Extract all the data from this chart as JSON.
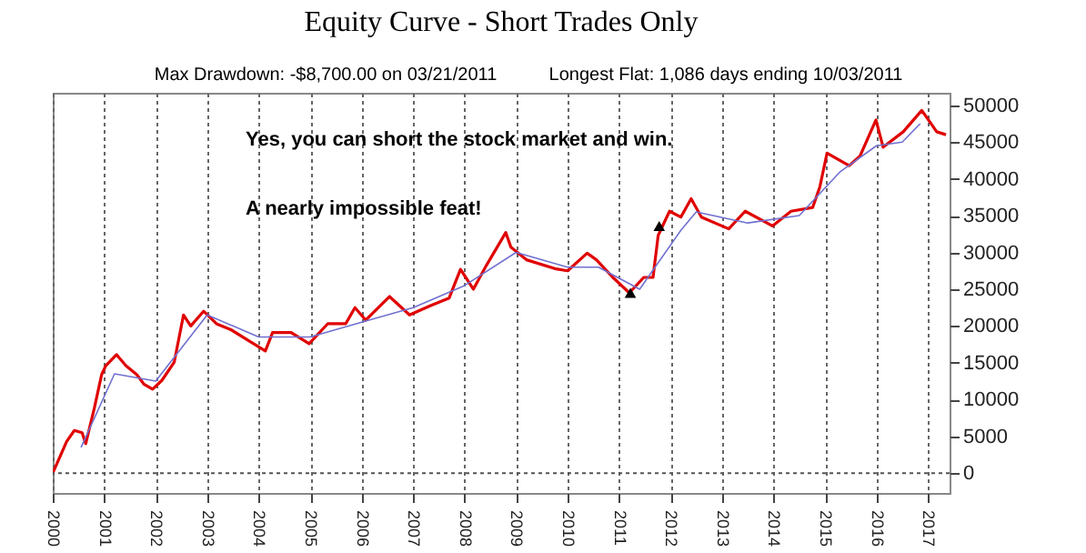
{
  "chart_data": {
    "type": "line",
    "title": "Equity Curve - Short Trades Only",
    "annotations": [
      "Max Drawdown: -$8,700.00 on 03/21/2011",
      "Longest Flat: 1,086 days ending 10/03/2011",
      "Yes, you can short the stock market and win.",
      "A nearly impossible feat!"
    ],
    "series": [
      {
        "color": "#e00000",
        "x": [
          2000.0,
          2000.27,
          2000.42,
          2000.57,
          2000.64,
          2000.81,
          2000.95,
          2001.03,
          2001.24,
          2001.42,
          2001.63,
          2001.77,
          2001.94,
          2002.12,
          2002.36,
          2002.54,
          2002.68,
          2002.93,
          2003.18,
          2003.46,
          2003.85,
          2004.13,
          2004.27,
          2004.63,
          2004.98,
          2005.34,
          2005.69,
          2005.87,
          2006.08,
          2006.54,
          2006.93,
          2007.35,
          2007.7,
          2007.92,
          2008.17,
          2008.42,
          2008.8,
          2008.9,
          2009.2,
          2009.75,
          2010.0,
          2010.38,
          2010.56,
          2010.88,
          2011.2,
          2011.48,
          2011.66,
          2011.76,
          2011.98,
          2012.2,
          2012.4,
          2012.6,
          2013.13,
          2013.45,
          2013.98,
          2014.34,
          2014.76,
          2014.9,
          2015.04,
          2015.47,
          2015.68,
          2015.99,
          2016.13,
          2016.52,
          2016.88,
          2017.17,
          2017.35
        ],
        "values": [
          0,
          4300,
          5800,
          5500,
          4000,
          8900,
          13400,
          14600,
          16100,
          14600,
          13400,
          12100,
          11400,
          12600,
          15100,
          21500,
          20000,
          22000,
          20300,
          19500,
          17800,
          16600,
          19100,
          19100,
          17600,
          20300,
          20300,
          22500,
          20800,
          24000,
          21500,
          22800,
          23800,
          27700,
          25000,
          28200,
          32700,
          30700,
          29000,
          27800,
          27500,
          29900,
          29000,
          26600,
          24500,
          26600,
          26600,
          32300,
          35600,
          34800,
          37300,
          34800,
          33200,
          35600,
          33600,
          35600,
          36100,
          38900,
          43500,
          41800,
          43100,
          48000,
          44300,
          46400,
          49300,
          46400,
          46000
        ]
      },
      {
        "color": "#7070d0",
        "x": [
          2000.55,
          2001.2,
          2002.0,
          2003.0,
          2004.0,
          2005.0,
          2006.0,
          2007.0,
          2008.0,
          2009.0,
          2010.0,
          2010.6,
          2011.4,
          2012.2,
          2012.5,
          2013.5,
          2014.5,
          2015.3,
          2016.0,
          2016.5,
          2016.85
        ],
        "values": [
          3500,
          13500,
          12500,
          21500,
          18500,
          18500,
          20500,
          22500,
          25500,
          30000,
          28000,
          28000,
          25000,
          33000,
          35500,
          34000,
          35000,
          41000,
          44500,
          45000,
          47500
        ]
      },
      {
        "type": "scatter",
        "marker": "triangle",
        "color": "#000000",
        "x": [
          2011.22,
          2011.78
        ],
        "values": [
          24500,
          33600
        ]
      }
    ],
    "xlim": [
      2000,
      2017.42
    ],
    "xticks": [
      2000,
      2001,
      2002,
      2003,
      2004,
      2005,
      2006,
      2007,
      2008,
      2009,
      2010,
      2011,
      2012,
      2013,
      2014,
      2015,
      2016,
      2017
    ],
    "ylim": [
      -2700,
      51700
    ],
    "yticks": [
      0,
      5000,
      10000,
      15000,
      20000,
      25000,
      30000,
      35000,
      40000,
      45000,
      50000
    ],
    "ref_lines": [
      {
        "axis": "y",
        "value": 0,
        "line_style": "dotted",
        "color": "#555555"
      }
    ],
    "grid": "x"
  }
}
